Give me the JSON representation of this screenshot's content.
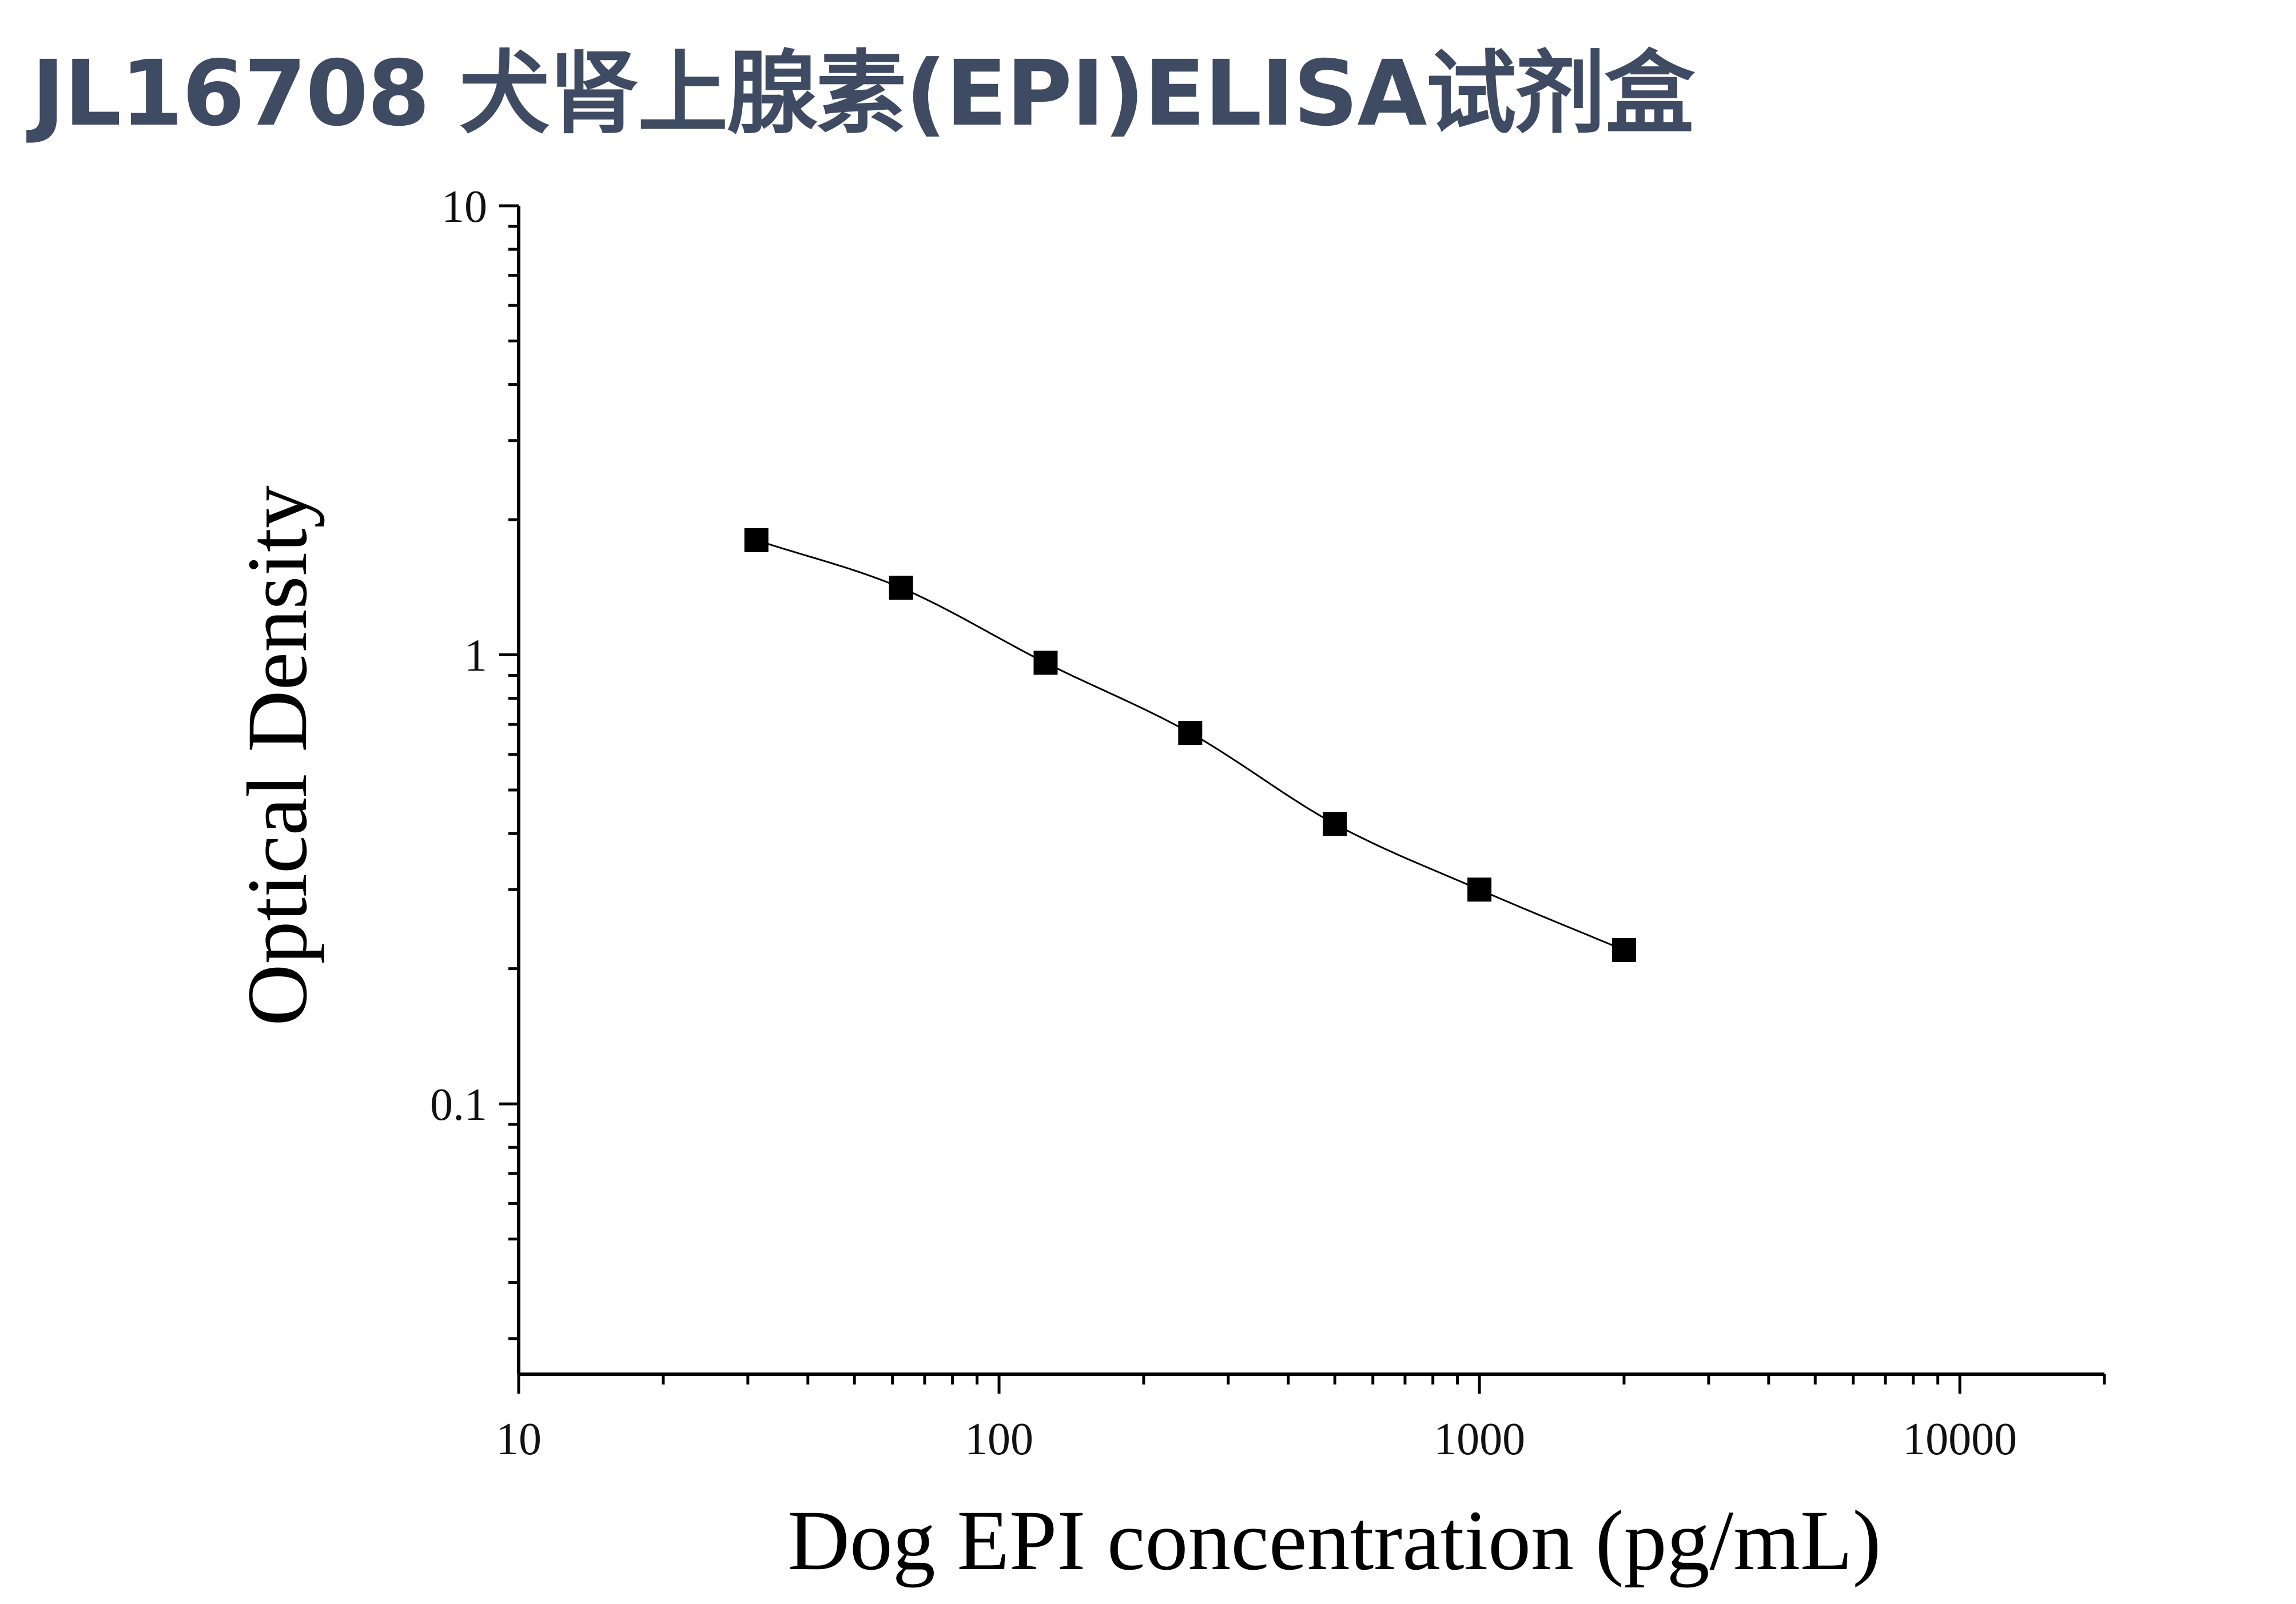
{
  "title": "JL16708 犬肾上腺素(EPI)ELISA试剂盒",
  "colors": {
    "title": "#3f4a63",
    "axis": "#000000",
    "marker": "#000000"
  },
  "chart_data": {
    "type": "scatter",
    "title": "JL16708 犬肾上腺素(EPI)ELISA试剂盒",
    "xlabel": "Dog EPI concentration (pg/mL)",
    "ylabel": "Optical Density",
    "xscale": "log",
    "yscale": "log",
    "xlim": [
      10,
      20000
    ],
    "ylim": [
      0.025,
      10
    ],
    "xticks": [
      10,
      100,
      1000,
      10000
    ],
    "xtick_labels": [
      "10",
      "100",
      "1000",
      "10000"
    ],
    "yticks": [
      0.1,
      1,
      10
    ],
    "ytick_labels": [
      "0.1",
      "1",
      "10"
    ],
    "grid": false,
    "marker": "square",
    "fit_line": true,
    "series": [
      {
        "x": [
          31.25,
          62.5,
          125,
          250,
          500,
          1000,
          2000
        ],
        "y": [
          1.8,
          1.41,
          0.96,
          0.67,
          0.42,
          0.3,
          0.22
        ]
      }
    ]
  }
}
